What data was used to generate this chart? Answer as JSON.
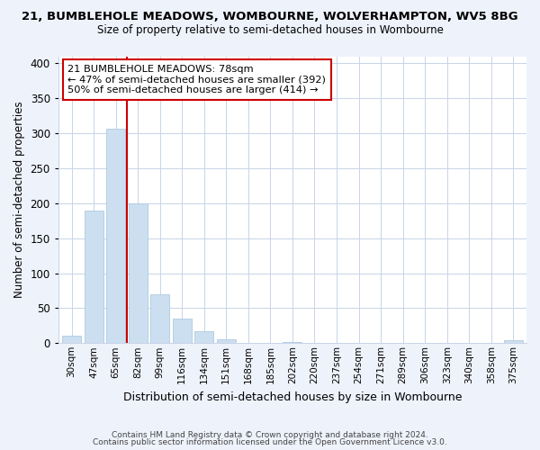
{
  "title_line1": "21, BUMBLEHOLE MEADOWS, WOMBOURNE, WOLVERHAMPTON, WV5 8BG",
  "title_line2": "Size of property relative to semi-detached houses in Wombourne",
  "xlabel": "Distribution of semi-detached houses by size in Wombourne",
  "ylabel": "Number of semi-detached properties",
  "bar_labels": [
    "30sqm",
    "47sqm",
    "65sqm",
    "82sqm",
    "99sqm",
    "116sqm",
    "134sqm",
    "151sqm",
    "168sqm",
    "185sqm",
    "202sqm",
    "220sqm",
    "237sqm",
    "254sqm",
    "271sqm",
    "289sqm",
    "306sqm",
    "323sqm",
    "340sqm",
    "358sqm",
    "375sqm"
  ],
  "bar_values": [
    10,
    190,
    306,
    200,
    70,
    35,
    17,
    6,
    0,
    0,
    2,
    0,
    0,
    0,
    0,
    0,
    0,
    0,
    0,
    0,
    4
  ],
  "bar_color": "#ccdff0",
  "bar_edge_color": "#aec9e0",
  "vline_color": "#cc0000",
  "ylim": [
    0,
    410
  ],
  "yticks": [
    0,
    50,
    100,
    150,
    200,
    250,
    300,
    350,
    400
  ],
  "annotation_title": "21 BUMBLEHOLE MEADOWS: 78sqm",
  "annotation_line1": "← 47% of semi-detached houses are smaller (392)",
  "annotation_line2": "50% of semi-detached houses are larger (414) →",
  "footer_line1": "Contains HM Land Registry data © Crown copyright and database right 2024.",
  "footer_line2": "Contains public sector information licensed under the Open Government Licence v3.0.",
  "bg_color": "#eef2fb",
  "plot_bg_color": "#ffffff",
  "grid_color": "#c8d4e8",
  "ann_border_color": "#cc0000"
}
